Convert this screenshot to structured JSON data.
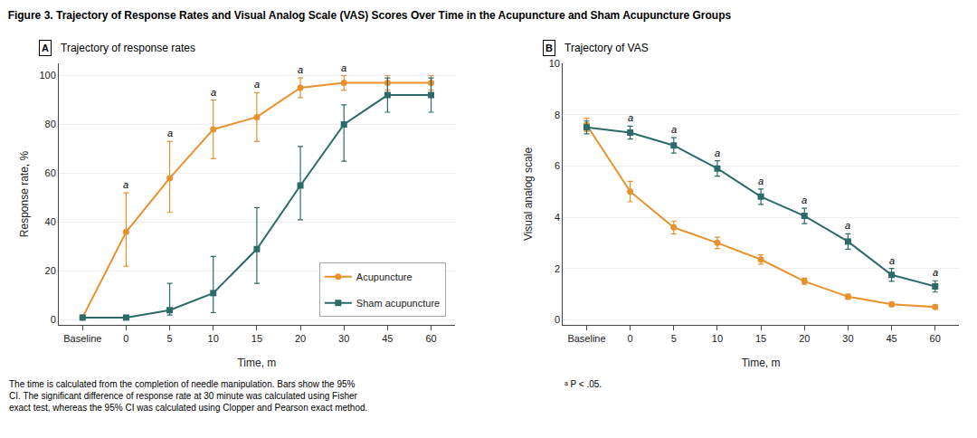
{
  "title": "Figure 3. Trajectory of Response Rates and Visual Analog Scale (VAS) Scores Over Time in the Acupuncture and Sham Acupuncture Groups",
  "annotations": [
    "The time is calculated from the completion of needle manipulation. Bars show the 95%\nCI. The significant difference of response rate at 30 minute was calculated using Fisher\nexact test, whereas the 95% CI was calculated using Clopper and Pearson exact method.",
    "ᵃ P < .05."
  ],
  "chart_data": [
    {
      "type": "line",
      "title": "Trajectory of response rates",
      "annotations": [
        {
          "text": "A"
        },
        {
          "text": "a",
          "x": "0"
        },
        {
          "text": "a",
          "x": "5"
        },
        {
          "text": "a",
          "x": "10"
        },
        {
          "text": "a",
          "x": "15"
        },
        {
          "text": "a",
          "x": "20"
        },
        {
          "text": "a",
          "x": "30"
        }
      ],
      "categories": [
        "Baseline",
        "0",
        "5",
        "10",
        "15",
        "20",
        "30",
        "45",
        "60"
      ],
      "xlabel": "Time, m",
      "ylabel": "Response rate, %",
      "ylim": [
        -2,
        105
      ],
      "yticks": [
        0,
        20,
        40,
        60,
        80,
        100
      ],
      "grid": true,
      "legend": "lower right",
      "series": [
        {
          "name": "Acupuncture",
          "color": "#E8912D",
          "marker": "circle",
          "values": [
            1,
            36,
            58,
            78,
            83,
            95,
            97,
            97,
            97
          ],
          "error_minus": [
            0.5,
            14,
            14,
            12,
            10,
            4,
            3,
            3,
            3
          ],
          "error_plus": [
            0.5,
            16,
            15,
            12,
            10,
            4,
            3,
            3,
            3
          ]
        },
        {
          "name": "Sham acupuncture",
          "color": "#2D6B68",
          "marker": "square",
          "values": [
            1,
            1,
            4,
            11,
            29,
            55,
            80,
            92,
            92
          ],
          "error_minus": [
            0.5,
            0.5,
            2,
            8,
            14,
            14,
            15,
            7,
            7
          ],
          "error_plus": [
            0.5,
            0.5,
            11,
            15,
            17,
            16,
            8,
            7,
            7
          ]
        }
      ]
    },
    {
      "type": "line",
      "title": "Trajectory of VAS",
      "annotations": [
        {
          "text": "B"
        },
        {
          "text": "a",
          "x": "0"
        },
        {
          "text": "a",
          "x": "5"
        },
        {
          "text": "a",
          "x": "10"
        },
        {
          "text": "a",
          "x": "15"
        },
        {
          "text": "a",
          "x": "20"
        },
        {
          "text": "a",
          "x": "30"
        },
        {
          "text": "a",
          "x": "45"
        },
        {
          "text": "a",
          "x": "60"
        }
      ],
      "categories": [
        "Baseline",
        "0",
        "5",
        "10",
        "15",
        "20",
        "30",
        "45",
        "60"
      ],
      "xlabel": "Time, m",
      "ylabel": "Visual analog scale",
      "ylim": [
        -0.2,
        10
      ],
      "yticks": [
        0,
        2,
        4,
        6,
        8,
        10
      ],
      "grid": true,
      "series": [
        {
          "name": "Acupuncture",
          "color": "#E8912D",
          "marker": "circle",
          "values": [
            7.6,
            5.0,
            3.6,
            3.0,
            2.35,
            1.5,
            0.9,
            0.6,
            0.5
          ],
          "error_minus": [
            0.25,
            0.4,
            0.25,
            0.22,
            0.18,
            0.12,
            0.1,
            0.08,
            0.08
          ],
          "error_plus": [
            0.25,
            0.4,
            0.25,
            0.22,
            0.18,
            0.12,
            0.1,
            0.08,
            0.08
          ]
        },
        {
          "name": "Sham acupuncture",
          "color": "#2D6B68",
          "marker": "square",
          "values": [
            7.5,
            7.3,
            6.8,
            5.9,
            4.8,
            4.05,
            3.05,
            1.75,
            1.3
          ],
          "error_minus": [
            0.25,
            0.25,
            0.3,
            0.3,
            0.3,
            0.3,
            0.3,
            0.25,
            0.22
          ],
          "error_plus": [
            0.25,
            0.25,
            0.3,
            0.3,
            0.3,
            0.3,
            0.3,
            0.25,
            0.22
          ]
        }
      ]
    }
  ]
}
